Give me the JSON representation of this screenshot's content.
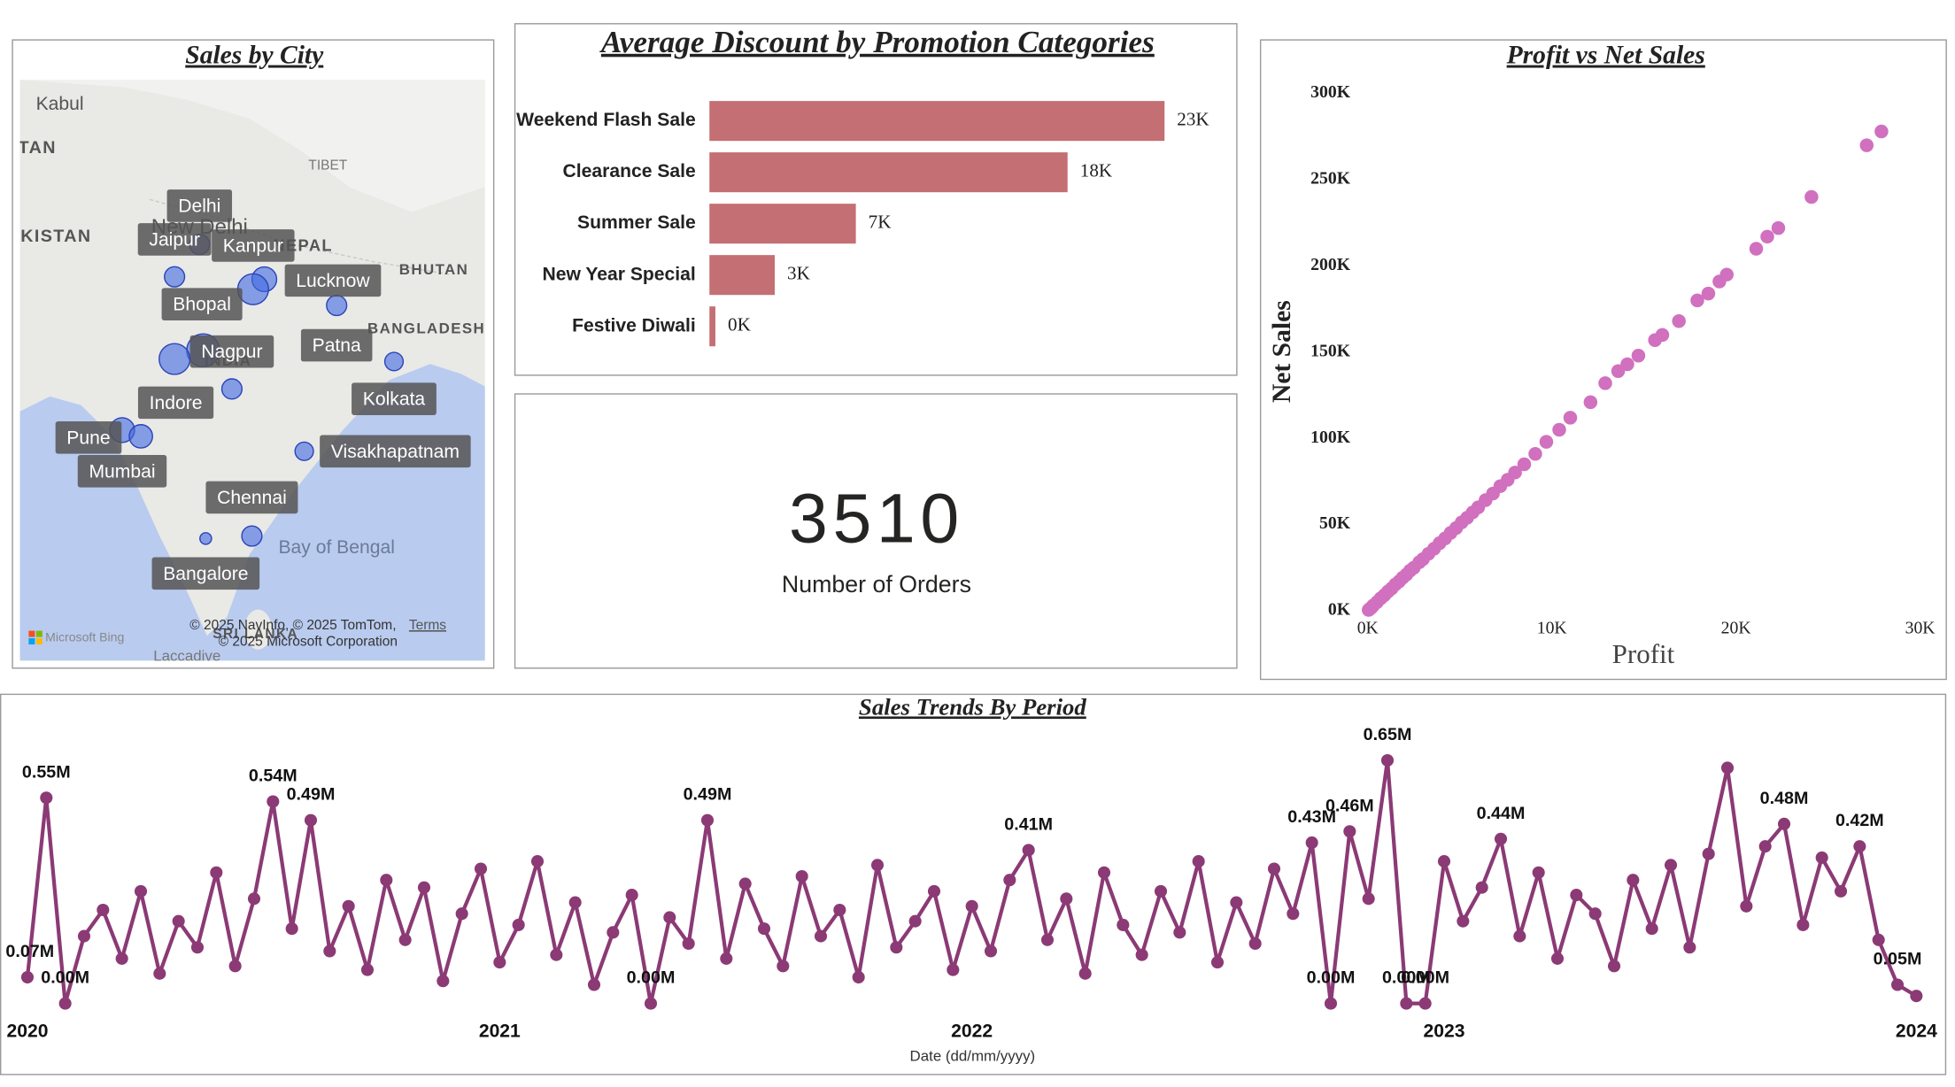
{
  "chart_data": [
    {
      "type": "map",
      "title": "Sales by City",
      "categories": [
        "Delhi",
        "Jaipur",
        "Kanpur",
        "Lucknow",
        "Bhopal",
        "Patna",
        "Nagpur",
        "Indore",
        "Kolkata",
        "Pune",
        "Visakhapatnam",
        "Mumbai",
        "Chennai",
        "Bangalore"
      ],
      "values": [
        6,
        6,
        9,
        14,
        16,
        6,
        6,
        14,
        5,
        9,
        5,
        8,
        6,
        2
      ],
      "color": "#4169e1",
      "map_labels": [
        "Kabul",
        "TAN",
        "KISTAN",
        "TIBET",
        "New Delhi",
        "NEPAL",
        "BHUTAN",
        "BANGLADESH",
        "INDIA",
        "Bay of Bengal",
        "SRI LANKA",
        "Laccadive",
        "© 2025 NavInfo, © 2025 TomTom,",
        "Terms",
        "© 2025 Microsoft Corporation",
        "Microsoft Bing"
      ]
    },
    {
      "type": "bar",
      "title": "Average Discount by Promotion Categories",
      "categories": [
        "Weekend Flash Sale",
        "Clearance Sale",
        "Summer Sale",
        "New Year Special",
        "Festive Diwali"
      ],
      "values": [
        23000,
        18100,
        7400,
        3300,
        300
      ],
      "value_labels": [
        "23K",
        "18K",
        "7K",
        "3K",
        "0K"
      ],
      "color": "#c46f73"
    },
    {
      "type": "kpi",
      "value": 3510,
      "label": "Number of Orders"
    },
    {
      "type": "scatter",
      "title": "Profit vs Net Sales",
      "x_label": "Profit",
      "y_label": "Net Sales",
      "color": "#d070bf",
      "x": [
        50,
        100,
        200,
        300,
        500,
        700,
        900,
        1100,
        1300,
        1500,
        1700,
        1900,
        2100,
        2300,
        2500,
        2800,
        3000,
        3300,
        3600,
        3900,
        4200,
        4500,
        4800,
        5100,
        5400,
        5700,
        6000,
        6400,
        6800,
        7200,
        7600,
        8000,
        8500,
        9100,
        9700,
        10400,
        11000,
        12100,
        12900,
        13600,
        14100,
        14700,
        15600,
        16000,
        16900,
        17900,
        18500,
        19100,
        19500,
        21100,
        21700,
        22300,
        24100,
        27100,
        27900
      ],
      "y": [
        500,
        1000,
        1900,
        3100,
        5000,
        7200,
        9000,
        11200,
        13000,
        15300,
        17000,
        19200,
        21000,
        23300,
        25000,
        28200,
        30000,
        33100,
        36000,
        39200,
        42000,
        45200,
        48000,
        51300,
        54000,
        57100,
        60000,
        64200,
        68000,
        72300,
        76000,
        80200,
        85000,
        91000,
        98000,
        105000,
        112000,
        121000,
        132000,
        139000,
        143000,
        148000,
        157000,
        160000,
        168000,
        180000,
        184000,
        191000,
        195000,
        210000,
        217000,
        222000,
        240000,
        270000,
        278000
      ],
      "xlim": [
        0,
        30000
      ],
      "xticks": [
        {
          "value": 0,
          "label": "0K"
        },
        {
          "value": 10000,
          "label": "10K"
        },
        {
          "value": 20000,
          "label": "20K"
        },
        {
          "value": 30000,
          "label": "30K"
        }
      ],
      "ylim": [
        0,
        300000
      ],
      "yticks": [
        {
          "value": 0,
          "label": "0K"
        },
        {
          "value": 50000,
          "label": "50K"
        },
        {
          "value": 100000,
          "label": "100K"
        },
        {
          "value": 150000,
          "label": "150K"
        },
        {
          "value": 200000,
          "label": "200K"
        },
        {
          "value": 250000,
          "label": "250K"
        },
        {
          "value": 300000,
          "label": "300K"
        }
      ]
    },
    {
      "type": "line",
      "title": "Sales Trends By Period",
      "x_label": "Date (dd/mm/yyyy)",
      "color": "#8b3a75",
      "xlim": [
        2020,
        2024
      ],
      "xticks": [
        2020,
        2021,
        2022,
        2023,
        2024
      ],
      "x": [
        2020,
        2020.04,
        2020.08,
        2020.12,
        2020.16,
        2020.2,
        2020.24,
        2020.28,
        2020.32,
        2020.36,
        2020.4,
        2020.44,
        2020.48,
        2020.52,
        2020.56,
        2020.6,
        2020.64,
        2020.68,
        2020.72,
        2020.76,
        2020.8,
        2020.84,
        2020.88,
        2020.92,
        2020.96,
        2021,
        2021.04,
        2021.08,
        2021.12,
        2021.16,
        2021.2,
        2021.24,
        2021.28,
        2021.32,
        2021.36,
        2021.4,
        2021.44,
        2021.48,
        2021.52,
        2021.56,
        2021.6,
        2021.64,
        2021.68,
        2021.72,
        2021.76,
        2021.8,
        2021.84,
        2021.88,
        2021.92,
        2021.96,
        2022,
        2022.04,
        2022.08,
        2022.12,
        2022.16,
        2022.2,
        2022.24,
        2022.28,
        2022.32,
        2022.36,
        2022.4,
        2022.44,
        2022.48,
        2022.52,
        2022.56,
        2022.6,
        2022.64,
        2022.68,
        2022.72,
        2022.76,
        2022.8,
        2022.84,
        2022.88,
        2022.92,
        2022.96,
        2023,
        2023.04,
        2023.08,
        2023.12,
        2023.16,
        2023.2,
        2023.24,
        2023.28,
        2023.32,
        2023.36,
        2023.4,
        2023.44,
        2023.48,
        2023.52,
        2023.56,
        2023.6,
        2023.64,
        2023.68,
        2023.72,
        2023.76,
        2023.8,
        2023.84,
        2023.88,
        2023.92,
        2023.96,
        2024
      ],
      "values": [
        0.07,
        0.55,
        0.0,
        0.18,
        0.25,
        0.12,
        0.3,
        0.08,
        0.22,
        0.15,
        0.35,
        0.1,
        0.28,
        0.54,
        0.2,
        0.49,
        0.14,
        0.26,
        0.09,
        0.33,
        0.17,
        0.31,
        0.06,
        0.24,
        0.36,
        0.11,
        0.21,
        0.38,
        0.13,
        0.27,
        0.05,
        0.19,
        0.29,
        0.0,
        0.23,
        0.16,
        0.49,
        0.12,
        0.32,
        0.2,
        0.1,
        0.34,
        0.18,
        0.25,
        0.07,
        0.37,
        0.15,
        0.22,
        0.3,
        0.09,
        0.26,
        0.14,
        0.33,
        0.41,
        0.17,
        0.28,
        0.08,
        0.35,
        0.21,
        0.13,
        0.3,
        0.19,
        0.38,
        0.11,
        0.27,
        0.16,
        0.36,
        0.24,
        0.43,
        0.0,
        0.46,
        0.28,
        0.65,
        0.0,
        0.0,
        0.38,
        0.22,
        0.31,
        0.44,
        0.18,
        0.35,
        0.12,
        0.29,
        0.24,
        0.1,
        0.33,
        0.2,
        0.37,
        0.15,
        0.4,
        0.63,
        0.26,
        0.42,
        0.48,
        0.21,
        0.39,
        0.3,
        0.42,
        0.17,
        0.05,
        0.02
      ],
      "value_labels": [
        "0.07M",
        "0.55M",
        "0.00M",
        null,
        null,
        null,
        null,
        null,
        null,
        null,
        null,
        null,
        null,
        "0.54M",
        null,
        "0.49M",
        null,
        null,
        null,
        null,
        null,
        null,
        null,
        null,
        null,
        null,
        null,
        null,
        null,
        null,
        null,
        null,
        null,
        "0.00M",
        null,
        null,
        "0.49M",
        null,
        null,
        null,
        null,
        null,
        null,
        null,
        null,
        null,
        null,
        null,
        null,
        null,
        null,
        null,
        null,
        "0.41M",
        null,
        null,
        null,
        null,
        null,
        null,
        null,
        null,
        null,
        null,
        null,
        null,
        null,
        null,
        "0.43M",
        "0.00M",
        "0.46M",
        null,
        "0.65M",
        "0.00M",
        "0.00M",
        null,
        null,
        null,
        "0.44M",
        null,
        null,
        null,
        null,
        null,
        null,
        null,
        null,
        null,
        null,
        null,
        null,
        null,
        null,
        "0.48M",
        null,
        null,
        null,
        "0.42M",
        null,
        "0.05M",
        null
      ]
    }
  ]
}
